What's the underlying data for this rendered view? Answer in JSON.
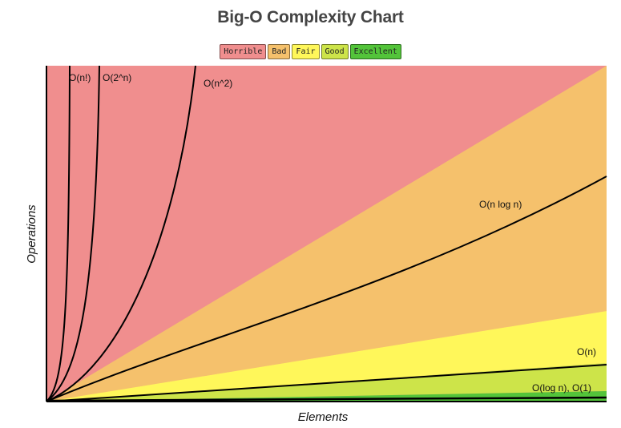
{
  "title": "Big-O Complexity Chart",
  "legend": [
    {
      "label": "Horrible",
      "color": "#f08e8e"
    },
    {
      "label": "Bad",
      "color": "#f5c16c"
    },
    {
      "label": "Fair",
      "color": "#fff75a"
    },
    {
      "label": "Good",
      "color": "#cde449"
    },
    {
      "label": "Excellent",
      "color": "#53c43a"
    }
  ],
  "chart_data": {
    "type": "line",
    "title": "Big-O Complexity Chart",
    "xlabel": "Elements",
    "ylabel": "Operations",
    "grid": false,
    "legend_position": "top-center",
    "series": [
      {
        "name": "O(n!)",
        "label": "O(n!)"
      },
      {
        "name": "O(2^n)",
        "label": "O(2^n)"
      },
      {
        "name": "O(n^2)",
        "label": "O(n^2)"
      },
      {
        "name": "O(n log n)",
        "label": "O(n log n)"
      },
      {
        "name": "O(n)",
        "label": "O(n)"
      },
      {
        "name": "O(log n), O(1)",
        "label": "O(log n), O(1)"
      }
    ],
    "zones": [
      "Horrible",
      "Bad",
      "Fair",
      "Good",
      "Excellent"
    ]
  }
}
